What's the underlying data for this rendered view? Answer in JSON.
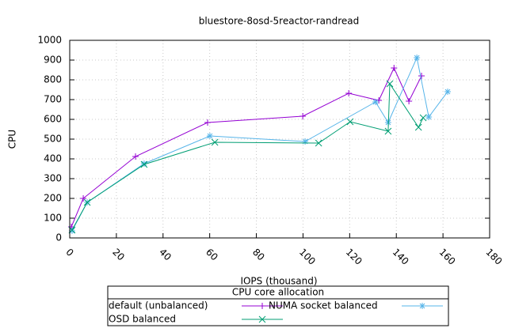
{
  "chart_data": {
    "type": "line",
    "title": "bluestore-8osd-5reactor-randread",
    "x_label": "IOPS (thousand)",
    "y_label": "CPU",
    "legend_title": "CPU core allocation",
    "xlim": [
      0,
      180
    ],
    "xticks": [
      0,
      20,
      40,
      60,
      80,
      100,
      120,
      140,
      160,
      180
    ],
    "ylim": [
      0,
      1000
    ],
    "yticks": [
      0,
      100,
      200,
      300,
      400,
      500,
      600,
      700,
      800,
      900,
      1000
    ],
    "grid": true,
    "series": [
      {
        "name": "default (unbalanced)",
        "color": "#9400d3",
        "marker": "plus",
        "x": [
          0.7,
          5.8,
          28.2,
          59.1,
          99.9,
          119.6,
          132.5,
          139.0,
          145.4,
          150.8
        ],
        "values": [
          56,
          200,
          412,
          584,
          616,
          732,
          696,
          860,
          692,
          820
        ]
      },
      {
        "name": "NUMA socket balanced",
        "color": "#56b4e9",
        "marker": "star",
        "x": [
          1.0,
          7.5,
          31.9,
          60.1,
          100.9,
          131.1,
          136.5,
          148.8,
          153.9,
          162.0
        ],
        "values": [
          36,
          180,
          376,
          516,
          488,
          688,
          584,
          912,
          612,
          740
        ]
      },
      {
        "name": "OSD balanced",
        "color": "#009e73",
        "marker": "cross",
        "x": [
          1.0,
          7.5,
          31.9,
          62.2,
          106.7,
          120.2,
          136.5,
          137.2,
          149.5,
          151.5
        ],
        "values": [
          40,
          180,
          372,
          484,
          480,
          588,
          540,
          780,
          560,
          608
        ]
      }
    ]
  }
}
